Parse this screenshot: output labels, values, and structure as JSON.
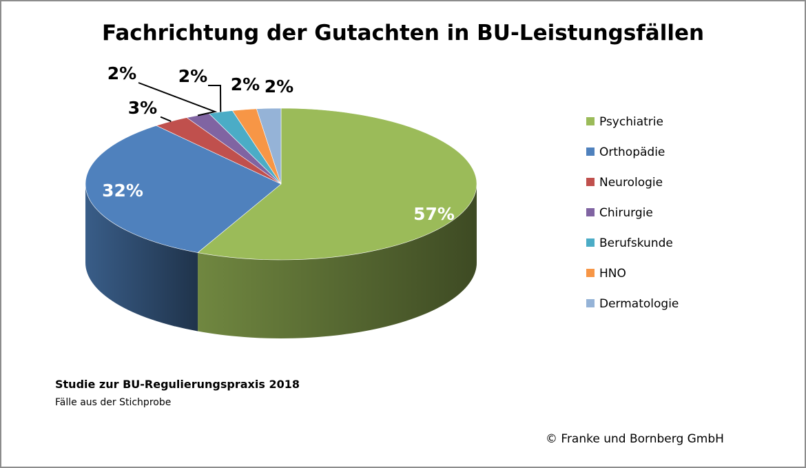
{
  "title": "Fachrichtung der Gutachten in BU-Leistungsfällen",
  "chart_data": {
    "type": "pie",
    "title": "Fachrichtung der Gutachten in BU-Leistungsfällen",
    "categories": [
      "Psychiatrie",
      "Orthopädie",
      "Neurologie",
      "Chirurgie",
      "Berufskunde",
      "HNO",
      "Dermatologie"
    ],
    "values": [
      57,
      32,
      3,
      2,
      2,
      2,
      2
    ],
    "labels": [
      "57%",
      "32%",
      "3%",
      "2%",
      "2%",
      "2%",
      "2%"
    ],
    "colors": [
      "#9bbb59",
      "#4f81bd",
      "#c0504d",
      "#8064a2",
      "#4bacc6",
      "#f79646",
      "#95b3d7"
    ],
    "legend_position": "right",
    "style": "3d"
  },
  "note": {
    "title": "Studie zur BU-Regulierungspraxis 2018",
    "subtitle": "Fälle aus der Stichprobe"
  },
  "copyright": "© Franke und Bornberg GmbH"
}
